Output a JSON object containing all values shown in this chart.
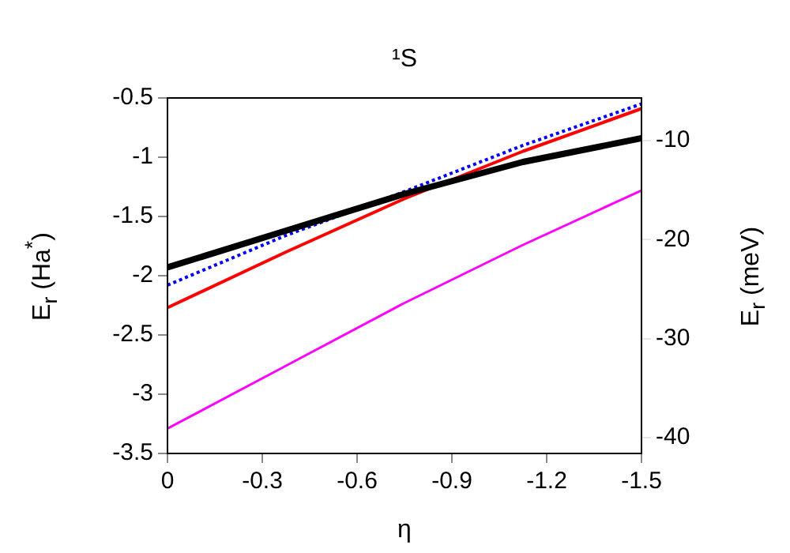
{
  "chart_data": {
    "type": "line",
    "title": "¹S",
    "xlabel": "η",
    "ylabel": "E$_{r}$ (Ha$^{*}$)",
    "y2label": "E$_{r}$ (meV)",
    "x": [
      0,
      -0.375,
      -0.75,
      -1.125,
      -1.5
    ],
    "xlim": [
      0,
      -1.5
    ],
    "xticks": [
      0,
      -0.3,
      -0.6,
      -0.9,
      -1.2,
      -1.5
    ],
    "ylim": [
      -3.5,
      -0.5
    ],
    "yticks": [
      -3.5,
      -3,
      -2.5,
      -2,
      -1.5,
      -1,
      -0.5
    ],
    "y2lim": [
      -41.6,
      -5.7
    ],
    "y2ticks": [
      -40,
      -30,
      -20,
      -10
    ],
    "grid": false,
    "legend": false,
    "marker": "none",
    "series": [
      {
        "color": "#000000",
        "line_style": "solid",
        "values": [
          -1.93,
          -1.62,
          -1.31,
          -1.04,
          -0.84
        ]
      },
      {
        "color": "#0000ff",
        "line_style": "dotted",
        "values": [
          -2.08,
          -1.66,
          -1.29,
          -0.9,
          -0.55
        ]
      },
      {
        "color": "#ff0000",
        "line_style": "solid",
        "values": [
          -2.27,
          -1.8,
          -1.35,
          -0.95,
          -0.59
        ]
      },
      {
        "color": "#ff00ff",
        "line_style": "solid",
        "values": [
          -3.29,
          -2.76,
          -2.23,
          -1.74,
          -1.28
        ]
      }
    ]
  }
}
